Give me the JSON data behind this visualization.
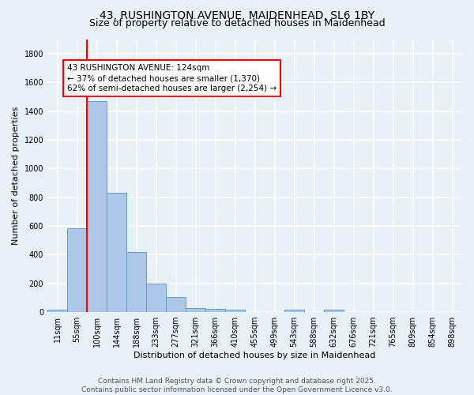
{
  "title_line1": "43, RUSHINGTON AVENUE, MAIDENHEAD, SL6 1BY",
  "title_line2": "Size of property relative to detached houses in Maidenhead",
  "xlabel": "Distribution of detached houses by size in Maidenhead",
  "ylabel": "Number of detached properties",
  "bar_labels": [
    "11sqm",
    "55sqm",
    "100sqm",
    "144sqm",
    "188sqm",
    "233sqm",
    "277sqm",
    "321sqm",
    "366sqm",
    "410sqm",
    "455sqm",
    "499sqm",
    "543sqm",
    "588sqm",
    "632sqm",
    "676sqm",
    "721sqm",
    "765sqm",
    "809sqm",
    "854sqm",
    "898sqm"
  ],
  "bar_values": [
    15,
    585,
    1470,
    830,
    420,
    200,
    105,
    30,
    20,
    15,
    0,
    0,
    15,
    0,
    15,
    0,
    0,
    0,
    0,
    0,
    0
  ],
  "bar_color": "#aec6e8",
  "bar_edgecolor": "#5a9ec9",
  "background_color": "#e8f0f8",
  "grid_color": "#ffffff",
  "vline_x": 1.5,
  "vline_color": "red",
  "annotation_text": "43 RUSHINGTON AVENUE: 124sqm\n← 37% of detached houses are smaller (1,370)\n62% of semi-detached houses are larger (2,254) →",
  "annotation_box_color": "white",
  "annotation_box_edgecolor": "red",
  "ylim": [
    0,
    1900
  ],
  "yticks": [
    0,
    200,
    400,
    600,
    800,
    1000,
    1200,
    1400,
    1600,
    1800
  ],
  "footnote": "Contains HM Land Registry data © Crown copyright and database right 2025.\nContains public sector information licensed under the Open Government Licence v3.0.",
  "title_fontsize": 10,
  "subtitle_fontsize": 9,
  "axis_label_fontsize": 8,
  "tick_fontsize": 7,
  "annotation_fontsize": 7.5,
  "footnote_fontsize": 6.5
}
